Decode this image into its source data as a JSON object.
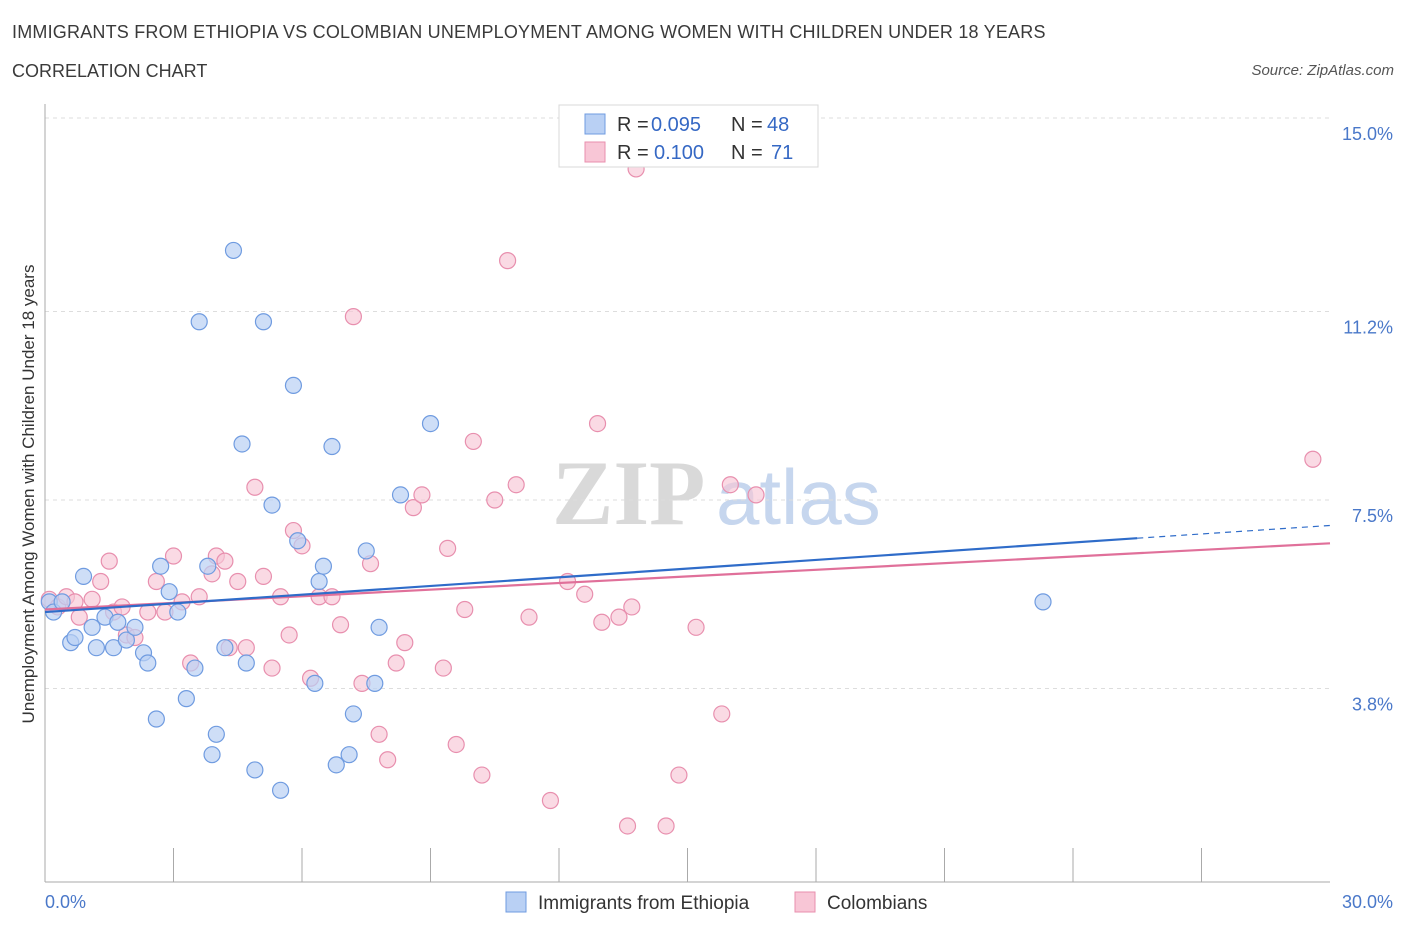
{
  "header": {
    "title": "IMMIGRANTS FROM ETHIOPIA VS COLOMBIAN UNEMPLOYMENT AMONG WOMEN WITH CHILDREN UNDER 18 YEARS",
    "subtitle": "CORRELATION CHART",
    "source": "Source: ZipAtlas.com"
  },
  "watermark": {
    "zip": "ZIP",
    "atlas": "atlas"
  },
  "colors": {
    "ethiopia_fill": "#b9d0f4",
    "ethiopia_stroke": "#6f9be0",
    "ethiopia_line": "#2f6cc9",
    "colombia_fill": "#f8c6d6",
    "colombia_stroke": "#e88fae",
    "colombia_line": "#e0709a",
    "tick_text": "#4a78c9",
    "grid": "#dddddd"
  },
  "legend_top": {
    "rows": [
      {
        "r_label": "R =",
        "r_value": "0.095",
        "n_label": "N =",
        "n_value": "48"
      },
      {
        "r_label": "R =",
        "r_value": "0.100",
        "n_label": "N =",
        "n_value": "71"
      }
    ]
  },
  "chart_data": {
    "type": "scatter",
    "title": "IMMIGRANTS FROM ETHIOPIA VS COLOMBIAN UNEMPLOYMENT AMONG WOMEN WITH CHILDREN UNDER 18 YEARS",
    "subtitle": "CORRELATION CHART",
    "ylabel": "Unemployment Among Women with Children Under 18 years",
    "xlabel": "",
    "xlim": [
      0,
      30
    ],
    "ylim": [
      0,
      15
    ],
    "x_tick_labels": [
      {
        "value": 0,
        "label": "0.0%"
      },
      {
        "value": 30,
        "label": "30.0%"
      }
    ],
    "y_tick_labels": [
      {
        "value": 3.8,
        "label": "3.8%"
      },
      {
        "value": 7.5,
        "label": "7.5%"
      },
      {
        "value": 11.2,
        "label": "11.2%"
      },
      {
        "value": 15.0,
        "label": "15.0%"
      }
    ],
    "grid": true,
    "legend_position": "top-center",
    "series": [
      {
        "name": "Immigrants from Ethiopia",
        "R": 0.095,
        "N": 48,
        "trend": {
          "x": [
            0,
            25.5
          ],
          "y": [
            5.3,
            6.75
          ]
        },
        "trend_dashed_extension": {
          "x": [
            25.5,
            30
          ],
          "y": [
            6.75,
            7.0
          ]
        },
        "points": [
          [
            0.1,
            5.5
          ],
          [
            0.2,
            5.3
          ],
          [
            0.4,
            5.5
          ],
          [
            0.6,
            4.7
          ],
          [
            0.7,
            4.8
          ],
          [
            0.9,
            6.0
          ],
          [
            1.1,
            5.0
          ],
          [
            1.2,
            4.6
          ],
          [
            1.4,
            5.2
          ],
          [
            1.6,
            4.6
          ],
          [
            1.7,
            5.1
          ],
          [
            1.9,
            4.75
          ],
          [
            2.1,
            5.0
          ],
          [
            2.3,
            4.5
          ],
          [
            2.4,
            4.3
          ],
          [
            2.6,
            3.2
          ],
          [
            2.7,
            6.2
          ],
          [
            2.9,
            5.7
          ],
          [
            3.1,
            5.3
          ],
          [
            3.3,
            3.6
          ],
          [
            3.5,
            4.2
          ],
          [
            3.6,
            11.0
          ],
          [
            3.8,
            6.2
          ],
          [
            3.9,
            2.5
          ],
          [
            4.0,
            2.9
          ],
          [
            4.2,
            4.6
          ],
          [
            4.4,
            12.4
          ],
          [
            4.6,
            8.6
          ],
          [
            4.7,
            4.3
          ],
          [
            4.9,
            2.2
          ],
          [
            5.1,
            11.0
          ],
          [
            5.3,
            7.4
          ],
          [
            5.5,
            1.8
          ],
          [
            5.8,
            9.75
          ],
          [
            5.9,
            6.7
          ],
          [
            6.3,
            3.9
          ],
          [
            6.4,
            5.9
          ],
          [
            6.5,
            6.2
          ],
          [
            6.7,
            8.55
          ],
          [
            7.2,
            3.3
          ],
          [
            7.1,
            2.5
          ],
          [
            6.8,
            2.3
          ],
          [
            7.5,
            6.5
          ],
          [
            7.8,
            5.0
          ],
          [
            7.7,
            3.9
          ],
          [
            8.3,
            7.6
          ],
          [
            9.0,
            9.0
          ],
          [
            23.3,
            5.5
          ]
        ]
      },
      {
        "name": "Colombians",
        "R": 0.1,
        "N": 71,
        "trend": {
          "x": [
            0,
            30
          ],
          "y": [
            5.35,
            6.65
          ]
        },
        "points": [
          [
            0.1,
            5.55
          ],
          [
            0.3,
            5.4
          ],
          [
            0.5,
            5.6
          ],
          [
            0.7,
            5.5
          ],
          [
            0.8,
            5.2
          ],
          [
            1.1,
            5.55
          ],
          [
            1.3,
            5.9
          ],
          [
            1.5,
            6.3
          ],
          [
            1.6,
            5.3
          ],
          [
            1.8,
            5.4
          ],
          [
            1.9,
            4.85
          ],
          [
            2.1,
            4.8
          ],
          [
            2.4,
            5.3
          ],
          [
            2.6,
            5.9
          ],
          [
            2.8,
            5.3
          ],
          [
            3.0,
            6.4
          ],
          [
            3.2,
            5.5
          ],
          [
            3.4,
            4.3
          ],
          [
            3.6,
            5.6
          ],
          [
            3.9,
            6.05
          ],
          [
            4.0,
            6.4
          ],
          [
            4.2,
            6.3
          ],
          [
            4.3,
            4.6
          ],
          [
            4.5,
            5.9
          ],
          [
            4.7,
            4.6
          ],
          [
            4.9,
            7.75
          ],
          [
            5.1,
            6.0
          ],
          [
            5.3,
            4.2
          ],
          [
            5.5,
            5.6
          ],
          [
            5.7,
            4.85
          ],
          [
            5.8,
            6.9
          ],
          [
            6.0,
            6.6
          ],
          [
            6.2,
            4.0
          ],
          [
            6.4,
            5.6
          ],
          [
            6.7,
            5.6
          ],
          [
            6.9,
            5.05
          ],
          [
            7.2,
            11.1
          ],
          [
            7.4,
            3.9
          ],
          [
            7.6,
            6.25
          ],
          [
            7.8,
            2.9
          ],
          [
            8.0,
            2.4
          ],
          [
            8.2,
            4.3
          ],
          [
            8.4,
            4.7
          ],
          [
            8.6,
            7.35
          ],
          [
            8.8,
            7.6
          ],
          [
            9.3,
            4.2
          ],
          [
            9.4,
            6.55
          ],
          [
            9.6,
            2.7
          ],
          [
            9.8,
            5.35
          ],
          [
            10.0,
            8.65
          ],
          [
            10.2,
            2.1
          ],
          [
            10.5,
            7.5
          ],
          [
            10.8,
            12.2
          ],
          [
            11.0,
            7.8
          ],
          [
            11.3,
            5.2
          ],
          [
            11.8,
            1.6
          ],
          [
            12.2,
            5.9
          ],
          [
            12.6,
            5.65
          ],
          [
            12.9,
            9.0
          ],
          [
            13.0,
            5.1
          ],
          [
            13.4,
            5.2
          ],
          [
            13.6,
            1.1
          ],
          [
            13.7,
            5.4
          ],
          [
            13.8,
            14.0
          ],
          [
            14.5,
            1.1
          ],
          [
            14.8,
            2.1
          ],
          [
            15.2,
            5.0
          ],
          [
            15.8,
            3.3
          ],
          [
            16.0,
            7.8
          ],
          [
            16.6,
            7.6
          ],
          [
            29.6,
            8.3
          ]
        ]
      }
    ]
  }
}
